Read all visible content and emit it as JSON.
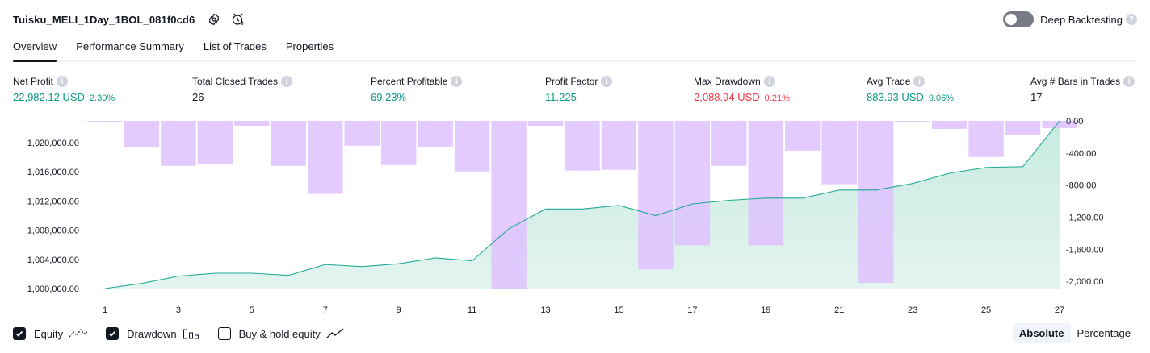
{
  "header": {
    "title": "Tuisku_MELI_1Day_1BOL_081f0cd6",
    "deep_backtesting_label": "Deep Backtesting",
    "deep_backtesting_enabled": false
  },
  "tabs": [
    "Overview",
    "Performance Summary",
    "List of Trades",
    "Properties"
  ],
  "active_tab": "Overview",
  "metrics": {
    "net_profit": {
      "label": "Net Profit",
      "value": "22,982.12 USD",
      "sub": "2.30%"
    },
    "total_closed_trades": {
      "label": "Total Closed Trades",
      "value": "26"
    },
    "percent_profitable": {
      "label": "Percent Profitable",
      "value": "69.23%"
    },
    "profit_factor": {
      "label": "Profit Factor",
      "value": "11.225"
    },
    "max_drawdown": {
      "label": "Max Drawdown",
      "value": "2,088.94 USD",
      "sub": "0.21%"
    },
    "avg_trade": {
      "label": "Avg Trade",
      "value": "883.93 USD",
      "sub": "9.06%"
    },
    "avg_bars": {
      "label": "Avg # Bars in Trades",
      "value": "17"
    }
  },
  "colors": {
    "profit": "#089981",
    "loss": "#f23645",
    "equity_line": "#22ab94",
    "equity_fill": "#e4f4ef",
    "drawdown_bar": "#dfc2ff"
  },
  "chart_data": {
    "type": "area",
    "x": [
      1,
      2,
      3,
      4,
      5,
      6,
      7,
      8,
      9,
      10,
      11,
      12,
      13,
      14,
      15,
      16,
      17,
      18,
      19,
      20,
      21,
      22,
      23,
      24,
      25,
      26,
      27
    ],
    "x_ticks": [
      "1",
      "3",
      "5",
      "7",
      "9",
      "11",
      "13",
      "15",
      "17",
      "19",
      "21",
      "23",
      "25",
      "27"
    ],
    "left_axis": {
      "ticks": [
        "1,000,000.00",
        "1,004,000.00",
        "1,008,000.00",
        "1,012,000.00",
        "1,016,000.00",
        "1,020,000.00"
      ],
      "ylim": [
        1000000,
        1022982
      ]
    },
    "right_axis": {
      "ticks": [
        "0.00",
        "-400.00",
        "-800.00",
        "-1,200.00",
        "-1,600.00",
        "-2,000.00"
      ],
      "ylim": [
        -2088.94,
        0
      ]
    },
    "series": [
      {
        "name": "Equity",
        "axis": "left",
        "values": [
          1000000,
          1000700,
          1001700,
          1002100,
          1002100,
          1001800,
          1003300,
          1003000,
          1003400,
          1004200,
          1003800,
          1008200,
          1010900,
          1010900,
          1011400,
          1010000,
          1011600,
          1012100,
          1012400,
          1012400,
          1013500,
          1013500,
          1014400,
          1015800,
          1016600,
          1016700,
          1022982
        ]
      },
      {
        "name": "Drawdown",
        "axis": "right",
        "values": [
          -10,
          -330,
          -560,
          -540,
          -60,
          -560,
          -910,
          -310,
          -550,
          -330,
          -630,
          -2088.94,
          -60,
          -620,
          -610,
          -1850,
          -1550,
          -560,
          -1550,
          -370,
          -790,
          -2020,
          -10,
          -100,
          -450,
          -170,
          -90
        ]
      }
    ]
  },
  "legend": {
    "items": [
      {
        "label": "Equity",
        "checked": true,
        "icon": "equity-line-icon"
      },
      {
        "label": "Drawdown",
        "checked": true,
        "icon": "drawdown-bars-icon"
      },
      {
        "label": "Buy & hold equity",
        "checked": false,
        "icon": "buy-hold-line-icon"
      }
    ]
  },
  "view_mode": {
    "options": [
      "Absolute",
      "Percentage"
    ],
    "selected": "Absolute"
  }
}
